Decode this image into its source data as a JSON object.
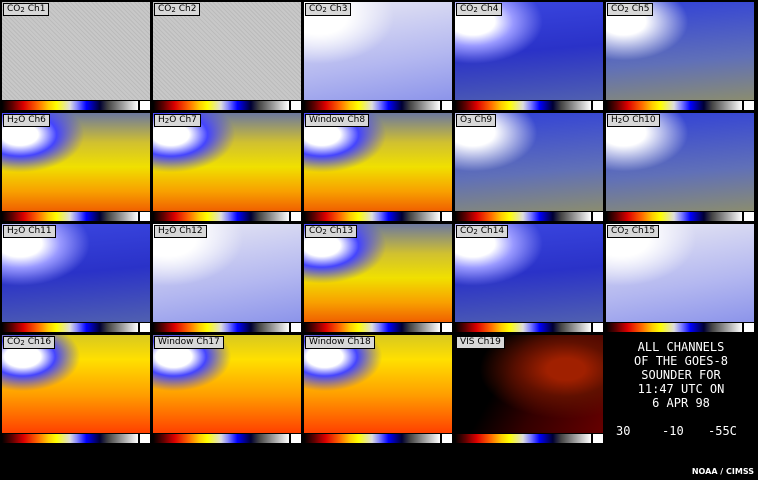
{
  "panels": [
    {
      "label": [
        {
          "text": "CO"
        },
        {
          "sub": "2"
        },
        {
          "text": " Ch1"
        }
      ]
    },
    {
      "label": [
        {
          "text": "CO"
        },
        {
          "sub": "2"
        },
        {
          "text": " Ch2"
        }
      ]
    },
    {
      "label": [
        {
          "text": "CO"
        },
        {
          "sub": "2"
        },
        {
          "text": " Ch3"
        }
      ]
    },
    {
      "label": [
        {
          "text": "CO"
        },
        {
          "sub": "2"
        },
        {
          "text": " Ch4"
        }
      ]
    },
    {
      "label": [
        {
          "text": "CO"
        },
        {
          "sub": "2"
        },
        {
          "text": " Ch5"
        }
      ]
    },
    {
      "label": [
        {
          "text": "H"
        },
        {
          "sub": "2"
        },
        {
          "text": "O Ch6"
        }
      ]
    },
    {
      "label": [
        {
          "text": "H"
        },
        {
          "sub": "2"
        },
        {
          "text": "O Ch7"
        }
      ]
    },
    {
      "label": [
        {
          "text": "Window Ch8"
        }
      ]
    },
    {
      "label": [
        {
          "text": "O"
        },
        {
          "sub": "3"
        },
        {
          "text": " Ch9"
        }
      ]
    },
    {
      "label": [
        {
          "text": "H"
        },
        {
          "sub": "2"
        },
        {
          "text": "O Ch10"
        }
      ]
    },
    {
      "label": [
        {
          "text": "H"
        },
        {
          "sub": "2"
        },
        {
          "text": "O Ch11"
        }
      ]
    },
    {
      "label": [
        {
          "text": "H"
        },
        {
          "sub": "2"
        },
        {
          "text": "O Ch12"
        }
      ]
    },
    {
      "label": [
        {
          "text": "CO"
        },
        {
          "sub": "2"
        },
        {
          "text": " Ch13"
        }
      ]
    },
    {
      "label": [
        {
          "text": "CO"
        },
        {
          "sub": "2"
        },
        {
          "text": " Ch14"
        }
      ]
    },
    {
      "label": [
        {
          "text": "CO"
        },
        {
          "sub": "2"
        },
        {
          "text": " Ch15"
        }
      ]
    },
    {
      "label": [
        {
          "text": "CO"
        },
        {
          "sub": "2"
        },
        {
          "text": " Ch16"
        }
      ]
    },
    {
      "label": [
        {
          "text": "Window Ch17"
        }
      ]
    },
    {
      "label": [
        {
          "text": "Window Ch18"
        }
      ]
    },
    {
      "label": [
        {
          "text": "VIS Ch19"
        }
      ]
    }
  ],
  "caption": {
    "lines": [
      "ALL CHANNELS",
      "OF THE GOES-8",
      "SOUNDER FOR",
      "11:47 UTC ON",
      "6 APR 98"
    ],
    "scale": [
      "30",
      "-10",
      "-55C"
    ]
  },
  "footer": "NOAA / CIMSS"
}
